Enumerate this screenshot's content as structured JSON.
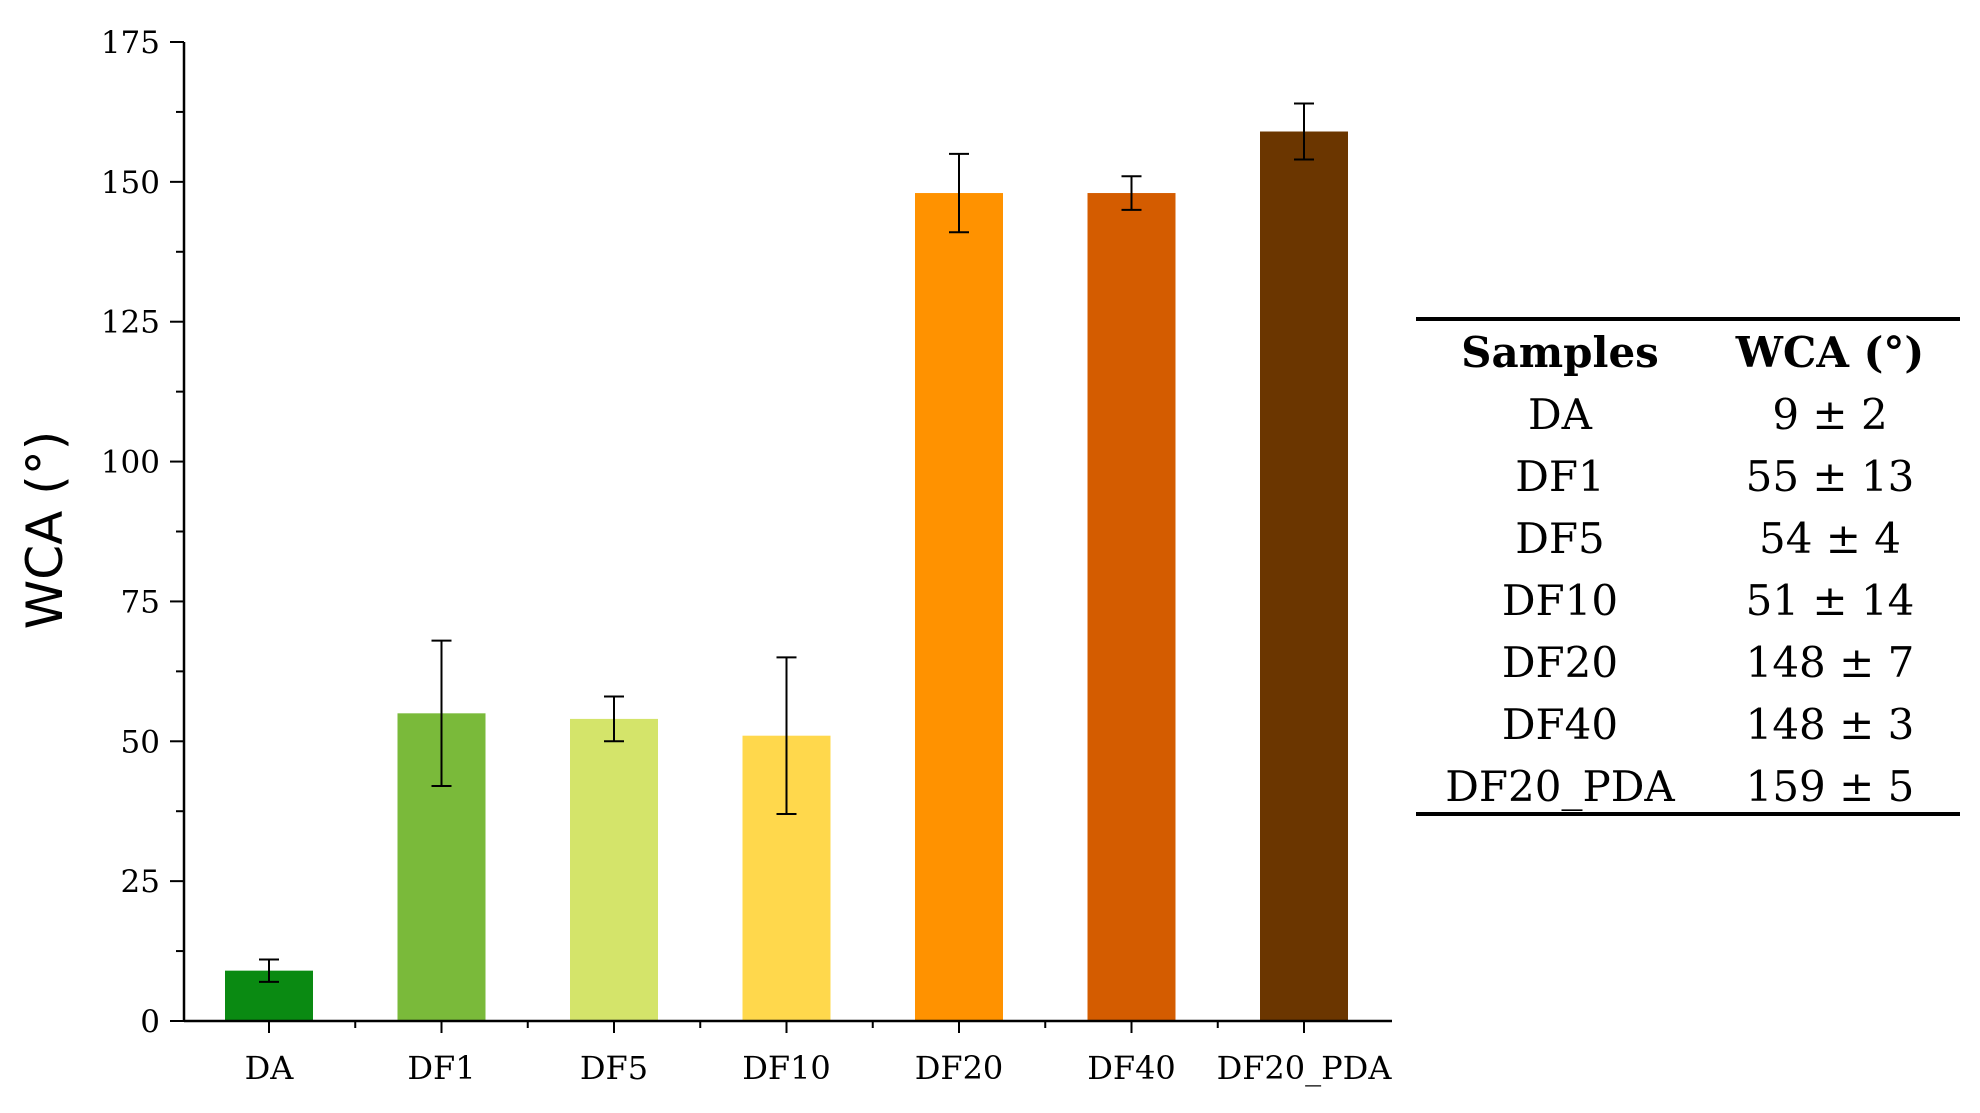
{
  "chart_data": {
    "type": "bar",
    "title": "",
    "xlabel": "",
    "ylabel": "WCA (°)",
    "ylim": [
      0,
      175
    ],
    "yticks": [
      0,
      25,
      50,
      75,
      100,
      125,
      150,
      175
    ],
    "categories": [
      "DA",
      "DF1",
      "DF5",
      "DF10",
      "DF20",
      "DF40",
      "DF20_PDA"
    ],
    "values": [
      9,
      55,
      54,
      51,
      148,
      148,
      159
    ],
    "errors": [
      2,
      13,
      4,
      14,
      7,
      3,
      5
    ],
    "bar_colors": [
      "#0a8a12",
      "#7aba3a",
      "#d4e46a",
      "#ffd84c",
      "#ff9200",
      "#d45c00",
      "#6b3600"
    ],
    "grid": false
  },
  "table": {
    "headers": [
      "Samples",
      "WCA (°)"
    ],
    "rows": [
      [
        "DA",
        "9 ± 2"
      ],
      [
        "DF1",
        "55 ± 13"
      ],
      [
        "DF5",
        "54 ± 4"
      ],
      [
        "DF10",
        "51 ± 14"
      ],
      [
        "DF20",
        "148 ± 7"
      ],
      [
        "DF40",
        "148 ± 3"
      ],
      [
        "DF20_PDA",
        "159 ± 5"
      ]
    ]
  }
}
